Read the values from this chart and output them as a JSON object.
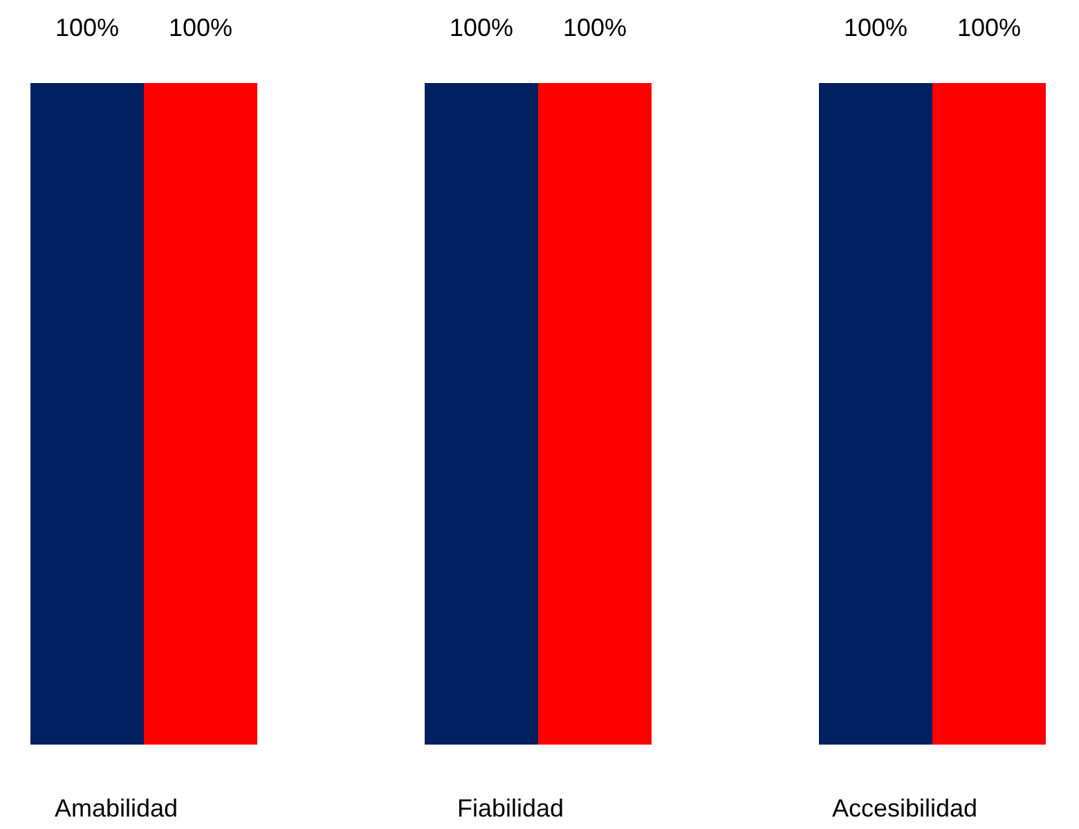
{
  "chart_data": {
    "type": "bar",
    "categories": [
      "Amabilidad",
      "Fiabilidad",
      "Accesibilidad"
    ],
    "series": [
      {
        "color": "#002060",
        "values": [
          100,
          100,
          100
        ],
        "value_labels": [
          "100%",
          "100%",
          "100%"
        ]
      },
      {
        "color": "#ff0000",
        "values": [
          100,
          100,
          100
        ],
        "value_labels": [
          "100%",
          "100%",
          "100%"
        ]
      }
    ]
  }
}
